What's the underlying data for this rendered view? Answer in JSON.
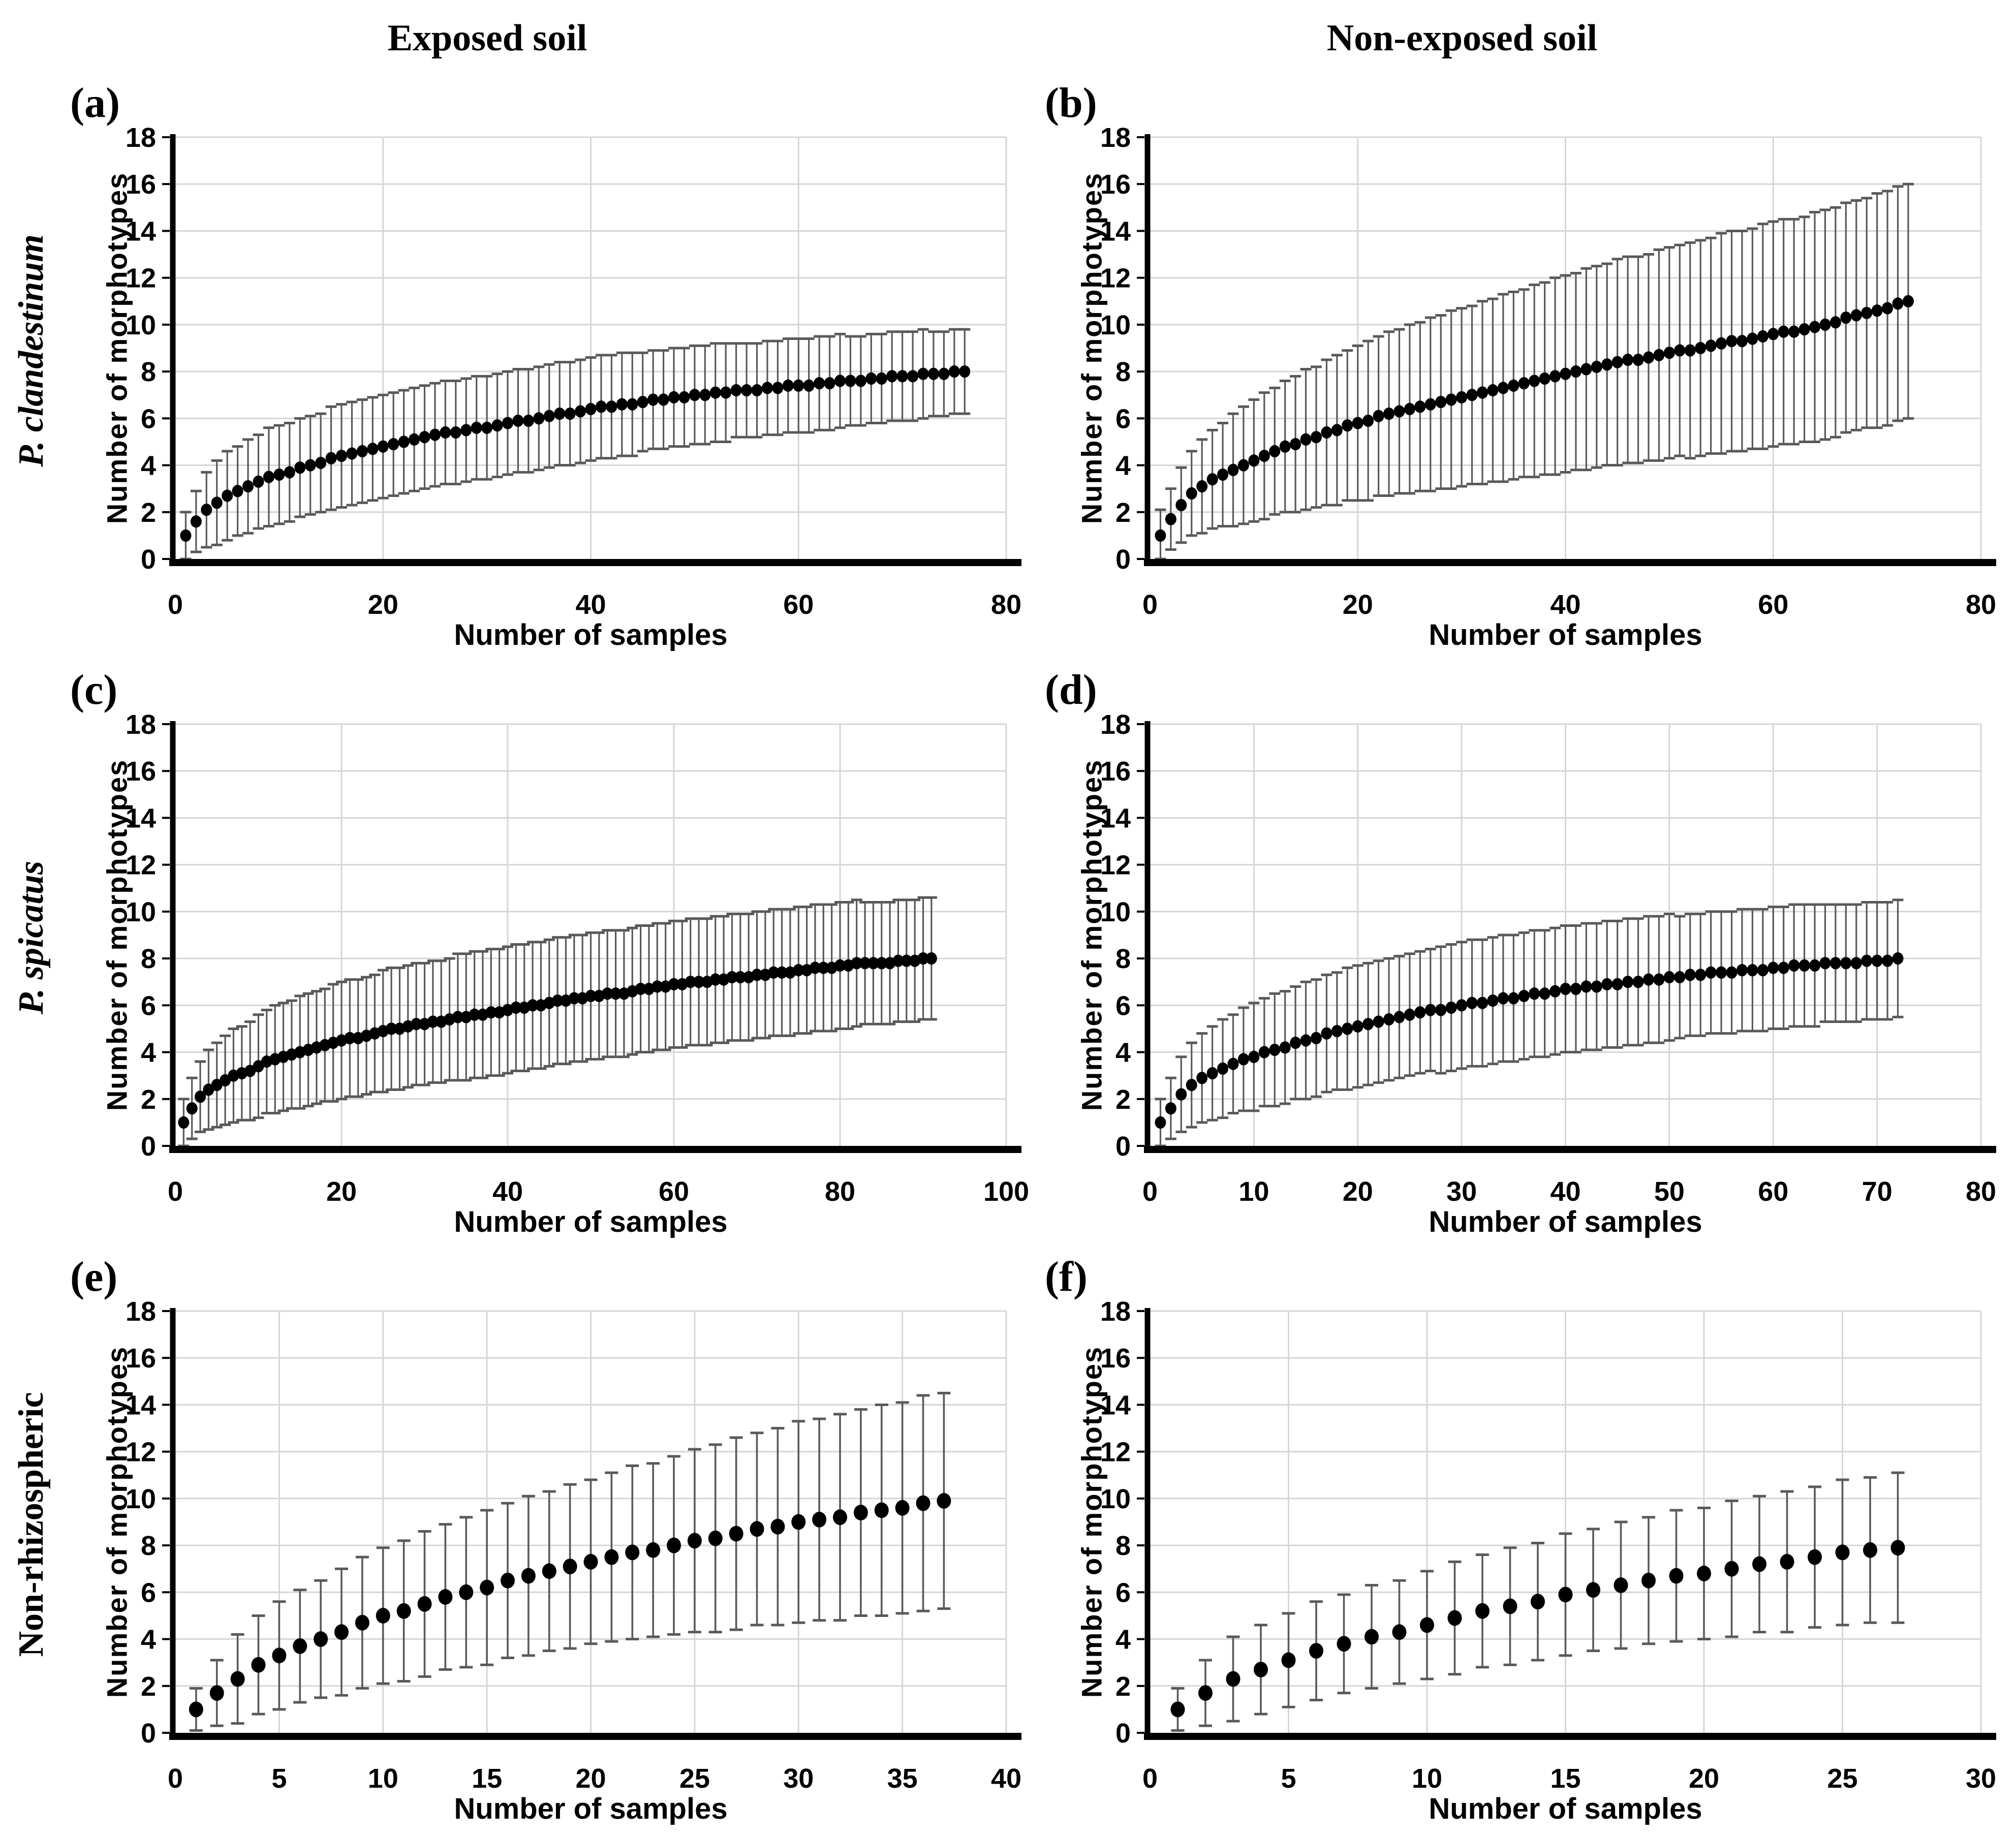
{
  "figure_title": "",
  "columns": [
    {
      "title": "Exposed soil"
    },
    {
      "title": "Non-exposed soil"
    }
  ],
  "rows": [
    {
      "label": "P. clandestinum",
      "italic": true
    },
    {
      "label": "P. spicatus",
      "italic": true
    },
    {
      "label": "Non-rhizospheric",
      "italic": false
    }
  ],
  "axis": {
    "x_label": "Number of samples",
    "y_label": "Number of morphotypes"
  },
  "style": {
    "grid_color": "#d6d6d6",
    "axis_color": "#000000",
    "marker_color": "#000000",
    "error_color": "#595959",
    "text_color": "#000000",
    "background": "#ffffff"
  },
  "chart_data": [
    {
      "panel": "(a)",
      "soil": "Exposed soil",
      "group": "P. clandestinum",
      "type": "scatter",
      "legend": "none",
      "grid": true,
      "xlabel": "Number of samples",
      "ylabel": "Number of morphotypes",
      "xlim": [
        0,
        80
      ],
      "xticks": [
        0,
        20,
        40,
        60,
        80
      ],
      "ylim": [
        0,
        18
      ],
      "yticks": [
        0,
        2,
        4,
        6,
        8,
        10,
        12,
        14,
        16,
        18
      ],
      "x_first": 1,
      "x_step": 1,
      "values": [
        1.0,
        1.6,
        2.1,
        2.4,
        2.7,
        2.9,
        3.1,
        3.3,
        3.5,
        3.6,
        3.7,
        3.9,
        4.0,
        4.1,
        4.3,
        4.4,
        4.5,
        4.6,
        4.7,
        4.8,
        4.9,
        5.0,
        5.1,
        5.2,
        5.3,
        5.4,
        5.4,
        5.5,
        5.6,
        5.6,
        5.7,
        5.8,
        5.9,
        5.9,
        6.0,
        6.1,
        6.2,
        6.2,
        6.3,
        6.4,
        6.5,
        6.5,
        6.6,
        6.6,
        6.7,
        6.8,
        6.8,
        6.9,
        6.9,
        7.0,
        7.0,
        7.1,
        7.1,
        7.2,
        7.2,
        7.2,
        7.3,
        7.3,
        7.4,
        7.4,
        7.4,
        7.5,
        7.5,
        7.6,
        7.6,
        7.6,
        7.7,
        7.7,
        7.8,
        7.8,
        7.8,
        7.9,
        7.9,
        7.9,
        8.0,
        8.0
      ],
      "errors": [
        1.0,
        1.3,
        1.6,
        1.8,
        1.9,
        1.9,
        2.0,
        2.0,
        2.1,
        2.1,
        2.1,
        2.1,
        2.1,
        2.1,
        2.2,
        2.2,
        2.2,
        2.2,
        2.2,
        2.2,
        2.2,
        2.2,
        2.2,
        2.2,
        2.2,
        2.2,
        2.2,
        2.2,
        2.2,
        2.2,
        2.2,
        2.2,
        2.2,
        2.2,
        2.2,
        2.2,
        2.2,
        2.2,
        2.2,
        2.2,
        2.2,
        2.2,
        2.2,
        2.2,
        2.1,
        2.1,
        2.1,
        2.1,
        2.1,
        2.1,
        2.1,
        2.1,
        2.1,
        2.0,
        2.0,
        2.0,
        2.0,
        2.0,
        2.0,
        2.0,
        2.0,
        2.0,
        2.0,
        2.0,
        1.9,
        1.9,
        1.9,
        1.9,
        1.9,
        1.9,
        1.9,
        1.9,
        1.8,
        1.8,
        1.8,
        1.8
      ]
    },
    {
      "panel": "(b)",
      "soil": "Non-exposed soil",
      "group": "P. clandestinum",
      "type": "scatter",
      "legend": "none",
      "grid": true,
      "xlabel": "Number of samples",
      "ylabel": "Number of morphotypes",
      "xlim": [
        0,
        80
      ],
      "xticks": [
        0,
        20,
        40,
        60,
        80
      ],
      "ylim": [
        0,
        18
      ],
      "yticks": [
        0,
        2,
        4,
        6,
        8,
        10,
        12,
        14,
        16,
        18
      ],
      "x_first": 1,
      "x_step": 1,
      "values": [
        1.0,
        1.7,
        2.3,
        2.8,
        3.1,
        3.4,
        3.6,
        3.8,
        4.0,
        4.2,
        4.4,
        4.6,
        4.8,
        4.9,
        5.1,
        5.2,
        5.4,
        5.5,
        5.7,
        5.8,
        5.9,
        6.1,
        6.2,
        6.3,
        6.4,
        6.5,
        6.6,
        6.7,
        6.8,
        6.9,
        7.0,
        7.1,
        7.2,
        7.3,
        7.4,
        7.5,
        7.6,
        7.7,
        7.8,
        7.9,
        8.0,
        8.1,
        8.2,
        8.3,
        8.4,
        8.5,
        8.5,
        8.6,
        8.7,
        8.8,
        8.9,
        8.9,
        9.0,
        9.1,
        9.2,
        9.3,
        9.3,
        9.4,
        9.5,
        9.6,
        9.7,
        9.7,
        9.8,
        9.9,
        10.0,
        10.1,
        10.3,
        10.4,
        10.5,
        10.6,
        10.7,
        10.9,
        11.0
      ],
      "errors": [
        1.1,
        1.3,
        1.6,
        1.8,
        2.0,
        2.1,
        2.2,
        2.4,
        2.5,
        2.6,
        2.7,
        2.7,
        2.8,
        2.9,
        3.0,
        3.0,
        3.1,
        3.2,
        3.2,
        3.3,
        3.4,
        3.4,
        3.5,
        3.5,
        3.6,
        3.6,
        3.7,
        3.7,
        3.8,
        3.8,
        3.8,
        3.9,
        3.9,
        4.0,
        4.0,
        4.0,
        4.1,
        4.1,
        4.2,
        4.2,
        4.2,
        4.3,
        4.3,
        4.3,
        4.4,
        4.4,
        4.4,
        4.4,
        4.5,
        4.5,
        4.5,
        4.6,
        4.6,
        4.6,
        4.7,
        4.7,
        4.7,
        4.7,
        4.8,
        4.8,
        4.8,
        4.8,
        4.8,
        4.9,
        4.9,
        4.9,
        4.9,
        4.9,
        4.9,
        5.0,
        5.0,
        5.0,
        5.0
      ]
    },
    {
      "panel": "(c)",
      "soil": "Exposed soil",
      "group": "P. spicatus",
      "type": "scatter",
      "legend": "none",
      "grid": true,
      "xlabel": "Number of samples",
      "ylabel": "Number of morphotypes",
      "xlim": [
        0,
        100
      ],
      "xticks": [
        0,
        20,
        40,
        60,
        80,
        100
      ],
      "ylim": [
        0,
        18
      ],
      "yticks": [
        0,
        2,
        4,
        6,
        8,
        10,
        12,
        14,
        16,
        18
      ],
      "x_first": 1,
      "x_step": 1,
      "values": [
        1.0,
        1.6,
        2.1,
        2.4,
        2.6,
        2.8,
        3.0,
        3.1,
        3.2,
        3.4,
        3.6,
        3.7,
        3.8,
        3.9,
        4.0,
        4.1,
        4.2,
        4.3,
        4.4,
        4.5,
        4.6,
        4.6,
        4.7,
        4.8,
        4.9,
        5.0,
        5.0,
        5.1,
        5.2,
        5.2,
        5.3,
        5.3,
        5.4,
        5.5,
        5.5,
        5.6,
        5.6,
        5.7,
        5.7,
        5.8,
        5.9,
        5.9,
        6.0,
        6.0,
        6.1,
        6.2,
        6.2,
        6.3,
        6.3,
        6.4,
        6.4,
        6.5,
        6.5,
        6.5,
        6.6,
        6.7,
        6.7,
        6.8,
        6.8,
        6.9,
        6.9,
        7.0,
        7.0,
        7.0,
        7.1,
        7.1,
        7.2,
        7.2,
        7.2,
        7.3,
        7.3,
        7.4,
        7.4,
        7.4,
        7.5,
        7.5,
        7.6,
        7.6,
        7.6,
        7.7,
        7.7,
        7.8,
        7.8,
        7.8,
        7.8,
        7.8,
        7.9,
        7.9,
        7.9,
        8.0,
        8.0
      ],
      "errors": [
        1.0,
        1.3,
        1.5,
        1.7,
        1.8,
        1.9,
        2.0,
        2.0,
        2.1,
        2.2,
        2.2,
        2.3,
        2.3,
        2.3,
        2.4,
        2.4,
        2.4,
        2.4,
        2.5,
        2.5,
        2.5,
        2.5,
        2.5,
        2.5,
        2.6,
        2.6,
        2.6,
        2.6,
        2.6,
        2.6,
        2.6,
        2.6,
        2.6,
        2.7,
        2.7,
        2.7,
        2.7,
        2.7,
        2.7,
        2.7,
        2.7,
        2.7,
        2.7,
        2.7,
        2.7,
        2.7,
        2.7,
        2.7,
        2.7,
        2.7,
        2.7,
        2.7,
        2.7,
        2.7,
        2.7,
        2.7,
        2.7,
        2.7,
        2.7,
        2.7,
        2.7,
        2.7,
        2.7,
        2.7,
        2.7,
        2.7,
        2.7,
        2.7,
        2.7,
        2.7,
        2.7,
        2.7,
        2.7,
        2.7,
        2.7,
        2.7,
        2.7,
        2.7,
        2.7,
        2.7,
        2.7,
        2.7,
        2.6,
        2.6,
        2.6,
        2.6,
        2.6,
        2.6,
        2.6,
        2.6,
        2.6
      ]
    },
    {
      "panel": "(d)",
      "soil": "Non-exposed soil",
      "group": "P. spicatus",
      "type": "scatter",
      "legend": "none",
      "grid": true,
      "xlabel": "Number of samples",
      "ylabel": "Number of morphotypes",
      "xlim": [
        0,
        80
      ],
      "xticks": [
        0,
        10,
        20,
        30,
        40,
        50,
        60,
        70,
        80
      ],
      "ylim": [
        0,
        18
      ],
      "yticks": [
        0,
        2,
        4,
        6,
        8,
        10,
        12,
        14,
        16,
        18
      ],
      "x_first": 1,
      "x_step": 1,
      "values": [
        1.0,
        1.6,
        2.2,
        2.6,
        2.9,
        3.1,
        3.3,
        3.5,
        3.7,
        3.8,
        4.0,
        4.1,
        4.2,
        4.4,
        4.5,
        4.6,
        4.8,
        4.9,
        5.0,
        5.1,
        5.2,
        5.3,
        5.4,
        5.5,
        5.6,
        5.7,
        5.8,
        5.8,
        5.9,
        6.0,
        6.1,
        6.1,
        6.2,
        6.3,
        6.3,
        6.4,
        6.5,
        6.5,
        6.6,
        6.7,
        6.7,
        6.8,
        6.8,
        6.9,
        6.9,
        7.0,
        7.0,
        7.1,
        7.1,
        7.2,
        7.2,
        7.3,
        7.3,
        7.4,
        7.4,
        7.4,
        7.5,
        7.5,
        7.5,
        7.6,
        7.6,
        7.7,
        7.7,
        7.7,
        7.8,
        7.8,
        7.8,
        7.8,
        7.9,
        7.9,
        7.9,
        8.0
      ],
      "errors": [
        1.0,
        1.3,
        1.6,
        1.8,
        1.9,
        2.0,
        2.1,
        2.1,
        2.2,
        2.3,
        2.3,
        2.4,
        2.4,
        2.4,
        2.5,
        2.5,
        2.5,
        2.5,
        2.6,
        2.6,
        2.6,
        2.6,
        2.6,
        2.6,
        2.6,
        2.6,
        2.6,
        2.7,
        2.7,
        2.7,
        2.7,
        2.7,
        2.7,
        2.7,
        2.7,
        2.7,
        2.7,
        2.7,
        2.7,
        2.7,
        2.7,
        2.7,
        2.7,
        2.7,
        2.7,
        2.7,
        2.7,
        2.7,
        2.7,
        2.7,
        2.6,
        2.6,
        2.6,
        2.6,
        2.6,
        2.6,
        2.6,
        2.6,
        2.6,
        2.6,
        2.6,
        2.6,
        2.6,
        2.6,
        2.5,
        2.5,
        2.5,
        2.5,
        2.5,
        2.5,
        2.5,
        2.5
      ]
    },
    {
      "panel": "(e)",
      "soil": "Exposed soil",
      "group": "Non-rhizospheric",
      "type": "scatter",
      "legend": "none",
      "grid": true,
      "xlabel": "Number of samples",
      "ylabel": "Number of morphotypes",
      "xlim": [
        0,
        40
      ],
      "xticks": [
        0,
        5,
        10,
        15,
        20,
        25,
        30,
        35,
        40
      ],
      "ylim": [
        0,
        18
      ],
      "yticks": [
        0,
        2,
        4,
        6,
        8,
        10,
        12,
        14,
        16,
        18
      ],
      "x_first": 1,
      "x_step": 1,
      "values": [
        1.0,
        1.7,
        2.3,
        2.9,
        3.3,
        3.7,
        4.0,
        4.3,
        4.7,
        5.0,
        5.2,
        5.5,
        5.8,
        6.0,
        6.2,
        6.5,
        6.7,
        6.9,
        7.1,
        7.3,
        7.5,
        7.7,
        7.8,
        8.0,
        8.2,
        8.3,
        8.5,
        8.7,
        8.8,
        9.0,
        9.1,
        9.2,
        9.4,
        9.5,
        9.6,
        9.8,
        9.9
      ],
      "errors": [
        0.9,
        1.4,
        1.9,
        2.1,
        2.3,
        2.4,
        2.5,
        2.7,
        2.8,
        2.9,
        3.0,
        3.1,
        3.1,
        3.2,
        3.3,
        3.3,
        3.4,
        3.4,
        3.5,
        3.5,
        3.6,
        3.7,
        3.7,
        3.8,
        3.9,
        4.0,
        4.1,
        4.1,
        4.2,
        4.3,
        4.3,
        4.4,
        4.4,
        4.5,
        4.5,
        4.6,
        4.6
      ]
    },
    {
      "panel": "(f)",
      "soil": "Non-exposed soil",
      "group": "Non-rhizospheric",
      "type": "scatter",
      "legend": "none",
      "grid": true,
      "xlabel": "Number of samples",
      "ylabel": "Number of morphotypes",
      "xlim": [
        0,
        30
      ],
      "xticks": [
        0,
        5,
        10,
        15,
        20,
        25,
        30
      ],
      "ylim": [
        0,
        18
      ],
      "yticks": [
        0,
        2,
        4,
        6,
        8,
        10,
        12,
        14,
        16,
        18
      ],
      "x_first": 1,
      "x_step": 1,
      "values": [
        1.0,
        1.7,
        2.3,
        2.7,
        3.1,
        3.5,
        3.8,
        4.1,
        4.3,
        4.6,
        4.9,
        5.2,
        5.4,
        5.6,
        5.9,
        6.1,
        6.3,
        6.5,
        6.7,
        6.8,
        7.0,
        7.2,
        7.3,
        7.5,
        7.7,
        7.8,
        7.9
      ],
      "errors": [
        0.9,
        1.4,
        1.8,
        1.9,
        2.0,
        2.1,
        2.1,
        2.2,
        2.2,
        2.3,
        2.4,
        2.4,
        2.5,
        2.5,
        2.6,
        2.6,
        2.7,
        2.7,
        2.8,
        2.8,
        2.9,
        2.9,
        3.0,
        3.0,
        3.1,
        3.1,
        3.2
      ]
    }
  ]
}
